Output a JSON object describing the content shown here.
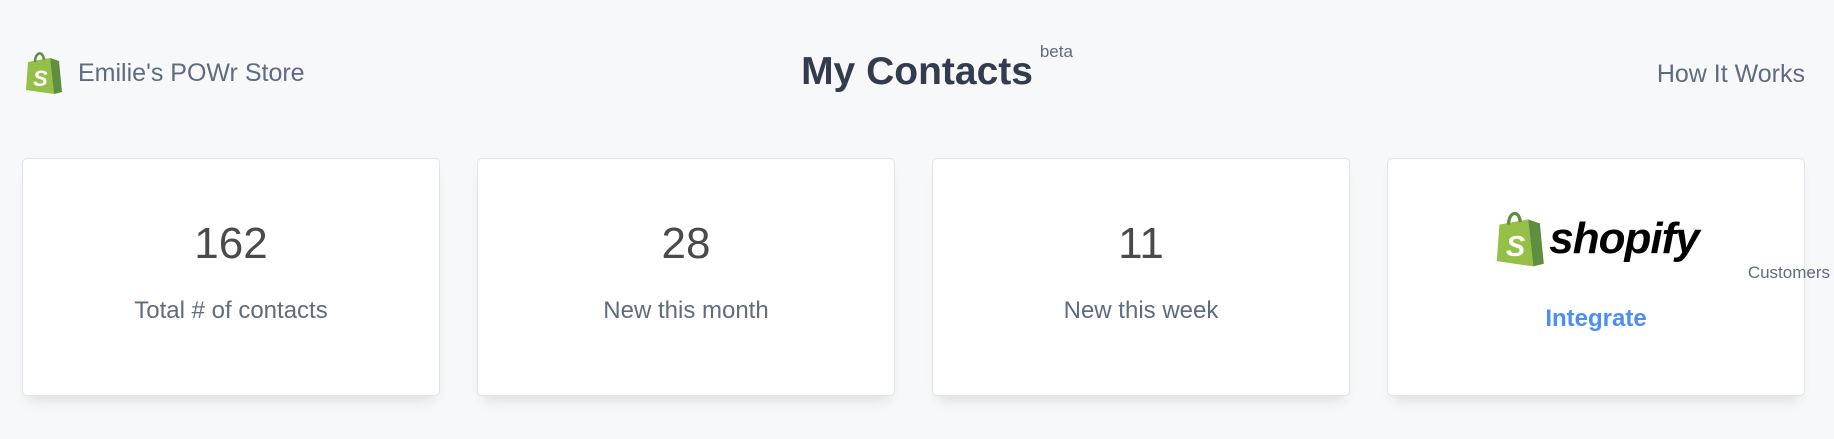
{
  "header": {
    "store_name": "Emilie's POWr Store",
    "title": "My Contacts",
    "beta_badge": "beta",
    "how_it_works": "How It Works",
    "store_icon": "shopify-bag-icon"
  },
  "stats": [
    {
      "value": "162",
      "label": "Total # of contacts"
    },
    {
      "value": "28",
      "label": "New this month"
    },
    {
      "value": "11",
      "label": "New this week"
    }
  ],
  "integration": {
    "logo_text": "shopify",
    "subtitle": "Customers",
    "action": "Integrate",
    "icon": "shopify-bag-icon"
  },
  "colors": {
    "accent": "#4a8ff5",
    "shopify_green": "#95bf47",
    "title": "#333c4e"
  }
}
